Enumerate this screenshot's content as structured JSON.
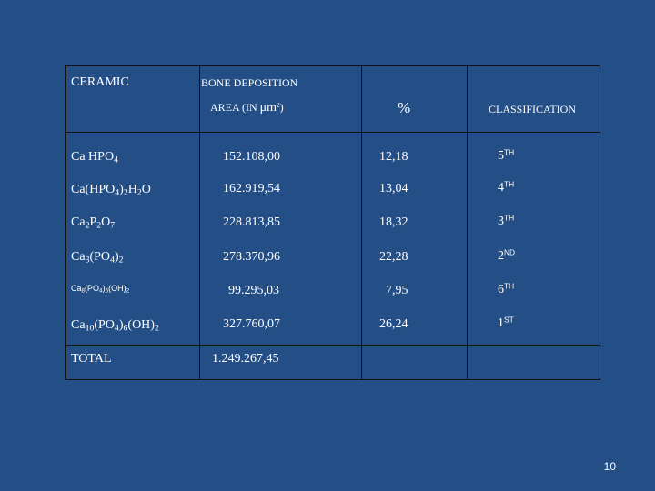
{
  "header": {
    "ceramic": "CERAMIC",
    "bone_deposition": "BONE DEPOSITION",
    "area_prefix": "AREA (IN",
    "area_unit": "μm",
    "area_exp": "2",
    "area_suffix": ")",
    "percent": "%",
    "classification": "CLASSIFICATION"
  },
  "rows": [
    {
      "ceramic": {
        "p1": "Ca HPO",
        "s1": "4"
      },
      "area": "152.108,00",
      "percent": "12,18",
      "rank": "5",
      "suffix": "TH"
    },
    {
      "ceramic": {
        "p1": "Ca(HPO",
        "s1": "4",
        "p2": ")",
        "s2": "2",
        "p3": "H",
        "s3": "2",
        "p4": "O"
      },
      "area": "162.919,54",
      "percent": "13,04",
      "rank": "4",
      "suffix": "TH"
    },
    {
      "ceramic": {
        "p1": "Ca",
        "s1": "2",
        "p2": "P",
        "s2": "2",
        "p3": "O",
        "s3": "7"
      },
      "area": "228.813,85",
      "percent": "18,32",
      "rank": "3",
      "suffix": "TH"
    },
    {
      "ceramic": {
        "p1": "Ca",
        "s1": "3",
        "p2": "(PO",
        "s2": "4",
        "p3": ")",
        "s3": "2"
      },
      "area": "278.370,96",
      "percent": "22,28",
      "rank": "2",
      "suffix": "ND"
    },
    {
      "ceramic": {
        "p1": "Ca",
        "s1": "8",
        "p2": "(PO",
        "s2": "4",
        "p3": ")",
        "s3": "6",
        "p4": "(OH)",
        "s4": "2"
      },
      "area": "99.295,03",
      "percent": "7,95",
      "rank": "6",
      "suffix": "TH"
    },
    {
      "ceramic": {
        "p1": "Ca",
        "s1": "10",
        "p2": "(PO",
        "s2": "4",
        "p3": ")",
        "s3": "6",
        "p4": "(OH)",
        "s4": "2"
      },
      "area": "327.760,07",
      "percent": "26,24",
      "rank": "1",
      "suffix": "ST"
    }
  ],
  "total": {
    "label": "TOTAL",
    "area": "1.249.267,45"
  },
  "page_number": "10"
}
